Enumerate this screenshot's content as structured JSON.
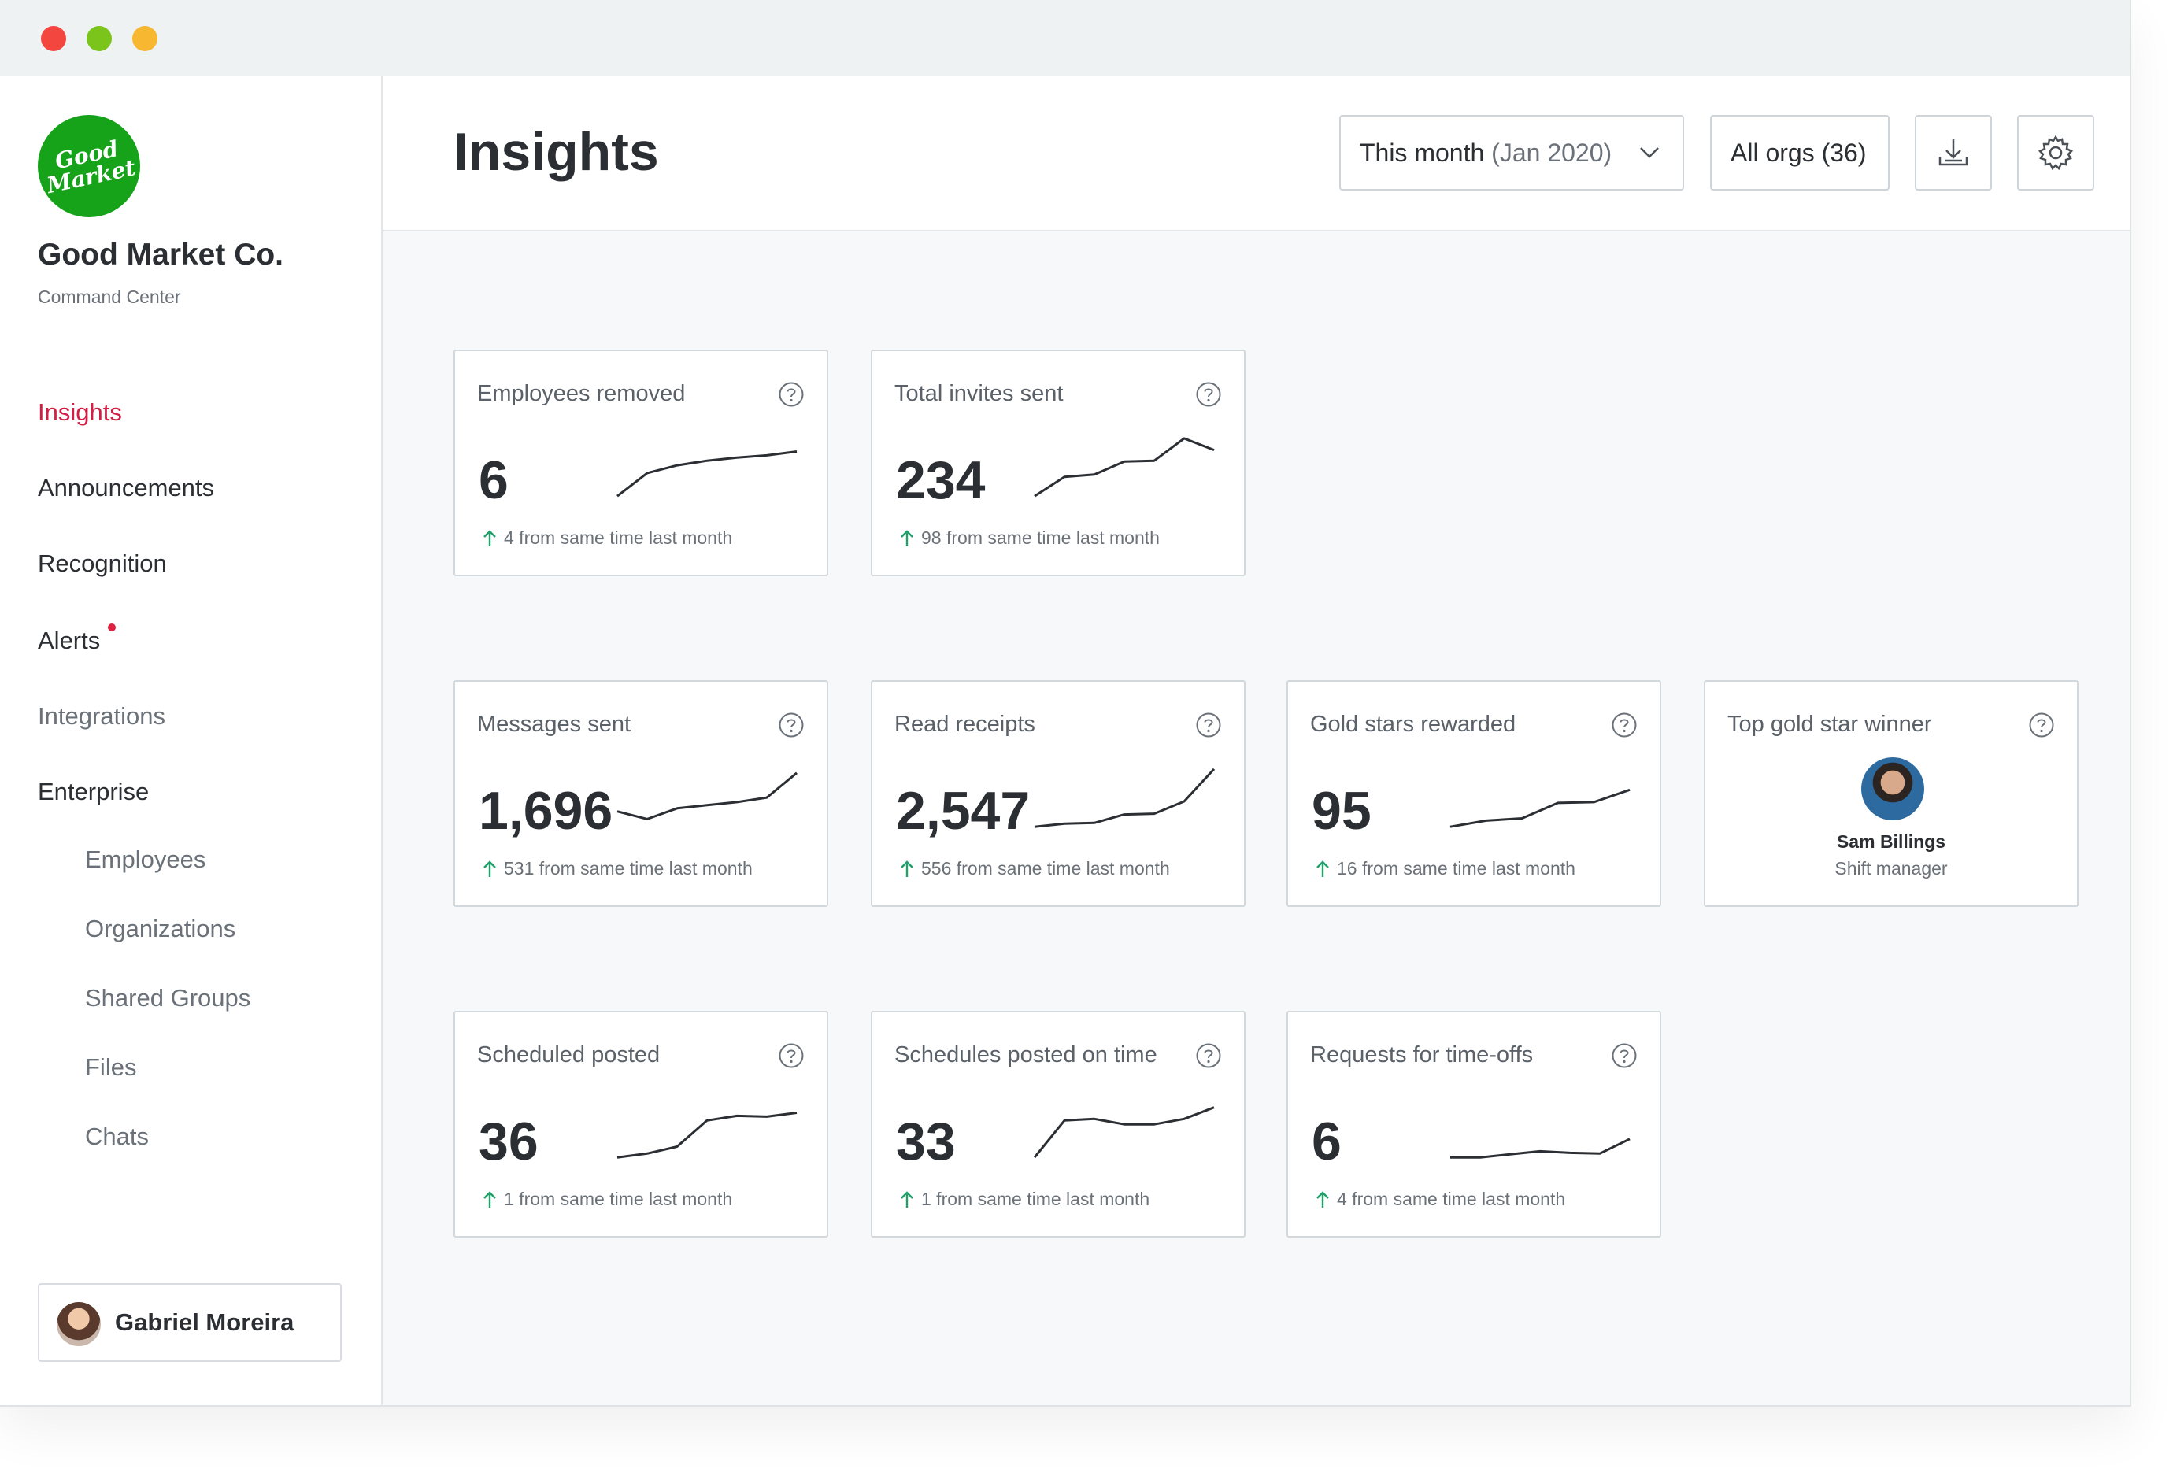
{
  "company": {
    "logo_text": "Good Market Co.",
    "name": "Good Market Co.",
    "subtitle": "Command Center"
  },
  "nav": {
    "items": [
      {
        "label": "Insights"
      },
      {
        "label": "Announcements"
      },
      {
        "label": "Recognition"
      },
      {
        "label": "Alerts"
      },
      {
        "label": "Integrations"
      },
      {
        "label": "Enterprise"
      },
      {
        "label": "Employees"
      },
      {
        "label": "Organizations"
      },
      {
        "label": "Shared Groups"
      },
      {
        "label": "Files"
      },
      {
        "label": "Chats"
      }
    ]
  },
  "user": {
    "name": "Gabriel Moreira"
  },
  "header": {
    "title": "Insights",
    "date_filter_main": "This month",
    "date_filter_detail": "(Jan 2020)",
    "org_filter": "All orgs (36)"
  },
  "cards": [
    {
      "title": "Employees removed",
      "value": "6",
      "delta": "4 from same time last month",
      "trend": [
        1,
        4,
        5,
        5.6,
        6,
        6.3,
        6.8
      ]
    },
    {
      "title": "Total invites sent",
      "value": "234",
      "delta": "98 from same time last month",
      "trend": [
        1,
        3.5,
        3.8,
        5.5,
        5.6,
        8.5,
        7
      ]
    },
    {
      "title": "Messages sent",
      "value": "1,696",
      "delta": "531 from same time last month",
      "trend": [
        3,
        2,
        3.4,
        3.8,
        4.2,
        4.8,
        8
      ]
    },
    {
      "title": "Read receipts",
      "value": "2,547",
      "delta": "556 from same time last month",
      "trend": [
        1,
        1.4,
        1.5,
        2.6,
        2.7,
        4.3,
        8.5
      ]
    },
    {
      "title": "Gold stars rewarded",
      "value": "95",
      "delta": "16 from same time last month",
      "trend": [
        1,
        1.8,
        2.1,
        4.1,
        4.2,
        5.8
      ]
    },
    {
      "title": "Top gold star winner",
      "winner_name": "Sam Billings",
      "winner_role": "Shift manager"
    },
    {
      "title": "Scheduled posted",
      "value": "36",
      "delta": "1 from same time last month",
      "trend": [
        1,
        1.5,
        2.4,
        5.8,
        6.4,
        6.3,
        6.8
      ]
    },
    {
      "title": "Schedules posted on time",
      "value": "33",
      "delta": "1 from same time last month",
      "trend": [
        1,
        5.8,
        6,
        5.3,
        5.3,
        6,
        7.5
      ]
    },
    {
      "title": "Requests for time-offs",
      "value": "6",
      "delta": "4 from same time last month",
      "trend": [
        1,
        1,
        1.4,
        1.8,
        1.6,
        1.5,
        3.4
      ]
    }
  ],
  "icons": {
    "help": "help-circle-icon",
    "download": "download-icon",
    "settings": "gear-icon",
    "delta": "arrow-up-icon",
    "chevron": "chevron-down-icon"
  },
  "colors": {
    "active": "#d21d45",
    "logo": "#16a31a",
    "positive": "#22a06b"
  }
}
